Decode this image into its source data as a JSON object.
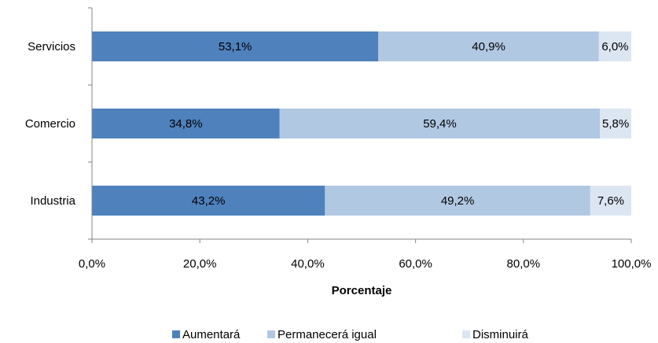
{
  "chart_data": {
    "type": "bar",
    "orientation": "horizontal",
    "stacked": true,
    "title": "",
    "xlabel": "Porcentaje",
    "ylabel": "",
    "xlim": [
      0,
      100
    ],
    "x_ticks": [
      "0,0%",
      "20,0%",
      "40,0%",
      "60,0%",
      "80,0%",
      "100,0%"
    ],
    "categories": [
      "Servicios",
      "Comercio",
      "Industria"
    ],
    "series": [
      {
        "name": "Aumentará",
        "color": "#4f81bd",
        "values": [
          53.1,
          34.8,
          43.2
        ],
        "labels": [
          "53,1%",
          "34,8%",
          "43,2%"
        ]
      },
      {
        "name": "Permanecerá igual",
        "color": "#b1c8e3",
        "values": [
          40.9,
          59.4,
          49.2
        ],
        "labels": [
          "40,9%",
          "59,4%",
          "49,2%"
        ]
      },
      {
        "name": "Disminuirá",
        "color": "#dce6f2",
        "values": [
          6.0,
          5.8,
          7.6
        ],
        "labels": [
          "6,0%",
          "5,8%",
          "7,6%"
        ]
      }
    ],
    "grid": false,
    "legend_position": "bottom"
  }
}
